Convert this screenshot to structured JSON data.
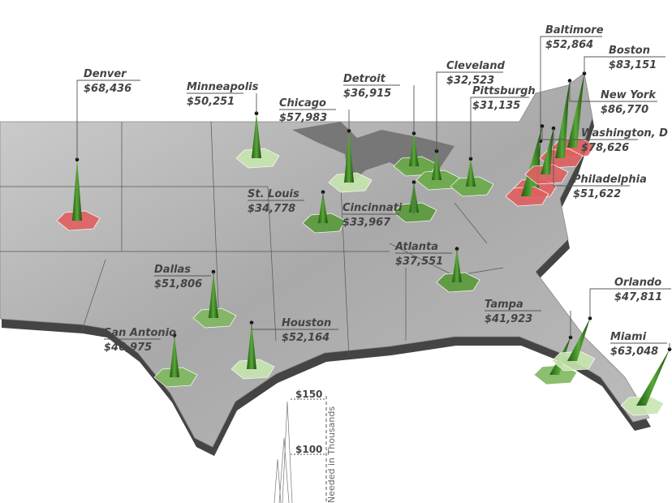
{
  "cities": [
    {
      "name": "Denver",
      "value": 68436,
      "label": "$68,436",
      "color": "#e06060"
    },
    {
      "name": "Minneapolis",
      "value": 50251,
      "label": "$50,251",
      "color": "#c8e6b0"
    },
    {
      "name": "Chicago",
      "value": 57983,
      "label": "$57,983",
      "color": "#c8e6b0"
    },
    {
      "name": "Detroit",
      "value": 36915,
      "label": "$36,915",
      "color": "#6aaa48"
    },
    {
      "name": "Cleveland",
      "value": 32523,
      "label": "$32,523",
      "color": "#6aaa48"
    },
    {
      "name": "Pittsburgh",
      "value": 31135,
      "label": "$31,135",
      "color": "#6aaa48"
    },
    {
      "name": "Baltimore",
      "value": 52864,
      "label": "$52,864",
      "color": "#e06060"
    },
    {
      "name": "Boston",
      "value": 83151,
      "label": "$83,151",
      "color": "#e06060"
    },
    {
      "name": "New York",
      "value": 86770,
      "label": "$86,770",
      "color": "#e06060"
    },
    {
      "name": "Washington, D",
      "value": 78626,
      "label": "$78,626",
      "color": "#e06060"
    },
    {
      "name": "Philadelphia",
      "value": 51622,
      "label": "$51,622",
      "color": "#e06060"
    },
    {
      "name": "St. Louis",
      "value": 34778,
      "label": "$34,778",
      "color": "#5a9a3a"
    },
    {
      "name": "Cincinnati",
      "value": 33967,
      "label": "$33,967",
      "color": "#5a9a3a"
    },
    {
      "name": "Atlanta",
      "value": 37551,
      "label": "$37,551",
      "color": "#5a9a3a"
    },
    {
      "name": "Dallas",
      "value": 51806,
      "label": "$51,806",
      "color": "#80b860"
    },
    {
      "name": "Houston",
      "value": 52164,
      "label": "$52,164",
      "color": "#c8e6b0"
    },
    {
      "name": "San Antonio",
      "value": 46975,
      "label": "$46,975",
      "color": "#80b860"
    },
    {
      "name": "Tampa",
      "value": 41923,
      "label": "$41,923",
      "color": "#80b860"
    },
    {
      "name": "Orlando",
      "value": 47811,
      "label": "$47,811",
      "color": "#c8e6b0"
    },
    {
      "name": "Miami",
      "value": 63048,
      "label": "$63,048",
      "color": "#c8e6b0"
    }
  ],
  "legend": {
    "title": "Needed in Thousands",
    "ticks": [
      {
        "value": 150,
        "label": "$150"
      },
      {
        "value": 100,
        "label": "$100"
      }
    ]
  }
}
